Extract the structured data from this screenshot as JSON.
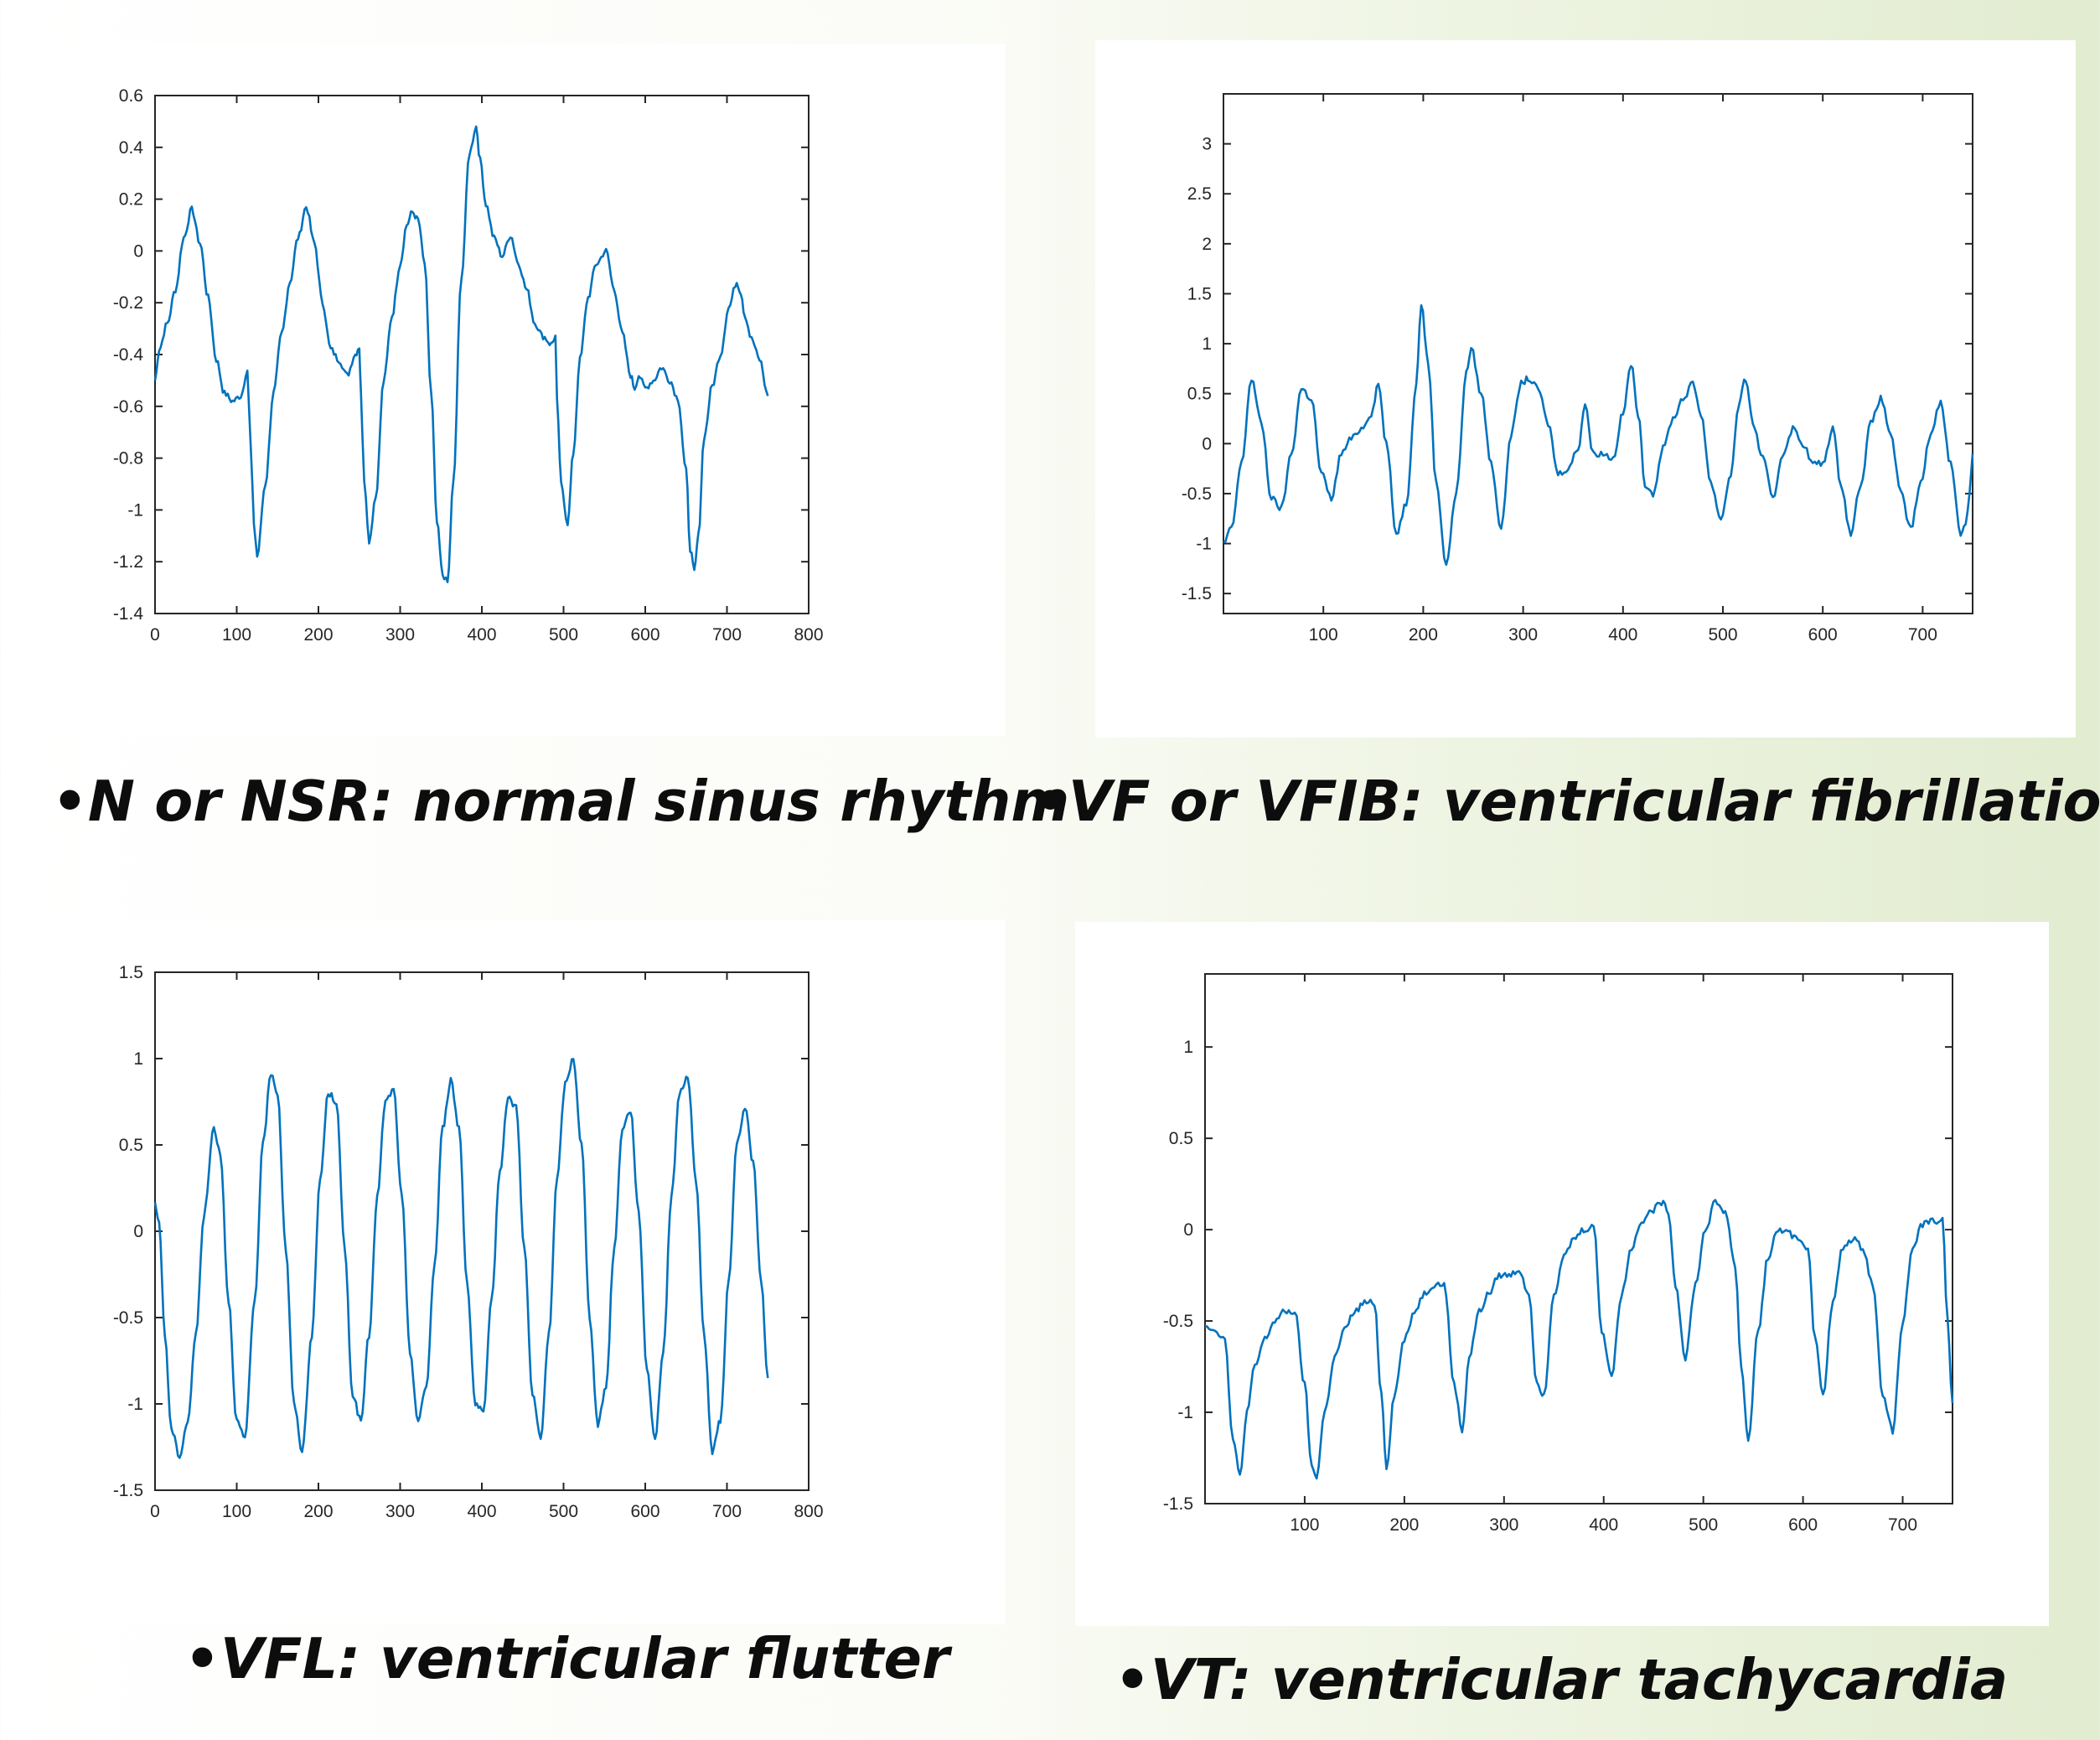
{
  "captions": {
    "nsr": "•N or NSR: normal sinus rhythm",
    "vf": "•VF or VFIB: ventricular fibrillation",
    "vfl": "•VFL: ventricular flutter",
    "vt": "•VT: ventricular tachycardia"
  },
  "colors": {
    "trace": "#0072bd",
    "axis": "#262626",
    "panel": "#ffffff"
  },
  "chart_data": [
    {
      "id": "nsr",
      "type": "line",
      "title": "",
      "xlabel": "",
      "ylabel": "",
      "xlim": [
        0,
        800
      ],
      "ylim": [
        -1.4,
        0.6
      ],
      "xticks": [
        0,
        100,
        200,
        300,
        400,
        500,
        600,
        700,
        800
      ],
      "yticks": [
        -1.4,
        -1.2,
        -1,
        -0.8,
        -0.6,
        -0.4,
        -0.2,
        0,
        0.2,
        0.4,
        0.6
      ],
      "xtick_labels": [
        "0",
        "100",
        "200",
        "300",
        "400",
        "500",
        "600",
        "700",
        "800"
      ],
      "ytick_labels": [
        "-1.4",
        "-1.2",
        "-1",
        "-0.8",
        "-0.6",
        "-0.4",
        "-0.2",
        "0",
        "0.2",
        "0.4",
        "0.6"
      ],
      "grid": false,
      "series": [
        {
          "x": [
            0,
            5,
            15,
            25,
            35,
            45,
            55,
            65,
            75,
            85,
            95,
            105,
            113,
            117,
            121,
            125,
            135,
            145,
            155,
            165,
            175,
            185,
            195,
            205,
            215,
            225,
            235,
            245,
            250,
            252,
            256,
            262,
            270,
            280,
            290,
            300,
            308,
            315,
            322,
            330,
            338,
            345,
            352,
            358,
            365,
            375,
            385,
            393,
            398,
            405,
            415,
            425,
            435,
            445,
            455,
            465,
            475,
            485,
            490,
            492,
            497,
            505,
            512,
            520,
            530,
            540,
            552,
            562,
            572,
            582,
            587,
            592,
            600,
            610,
            620,
            630,
            640,
            650,
            655,
            660,
            665,
            672,
            682,
            692,
            702,
            712,
            717,
            722,
            730,
            740,
            750
          ],
          "y": [
            -0.5,
            -0.38,
            -0.28,
            -0.15,
            0.05,
            0.16,
            0.03,
            -0.18,
            -0.42,
            -0.55,
            -0.58,
            -0.56,
            -0.46,
            -0.75,
            -1.05,
            -1.18,
            -0.9,
            -0.55,
            -0.32,
            -0.12,
            0.05,
            0.17,
            0.03,
            -0.2,
            -0.38,
            -0.42,
            -0.48,
            -0.4,
            -0.37,
            -0.55,
            -0.88,
            -1.12,
            -0.95,
            -0.5,
            -0.25,
            -0.05,
            0.1,
            0.15,
            0.12,
            -0.05,
            -0.55,
            -1.05,
            -1.25,
            -1.28,
            -0.9,
            -0.1,
            0.38,
            0.48,
            0.35,
            0.18,
            0.05,
            -0.02,
            0.06,
            -0.05,
            -0.15,
            -0.28,
            -0.33,
            -0.36,
            -0.33,
            -0.58,
            -0.9,
            -1.05,
            -0.78,
            -0.42,
            -0.18,
            -0.05,
            0.0,
            -0.15,
            -0.32,
            -0.48,
            -0.53,
            -0.48,
            -0.53,
            -0.5,
            -0.45,
            -0.5,
            -0.57,
            -0.85,
            -1.15,
            -1.24,
            -1.1,
            -0.72,
            -0.52,
            -0.4,
            -0.22,
            -0.12,
            -0.16,
            -0.25,
            -0.34,
            -0.42,
            -0.56
          ]
        }
      ]
    },
    {
      "id": "vf",
      "type": "line",
      "title": "",
      "xlabel": "",
      "ylabel": "",
      "xlim": [
        0,
        750
      ],
      "ylim": [
        -1.7,
        3.5
      ],
      "xticks": [
        100,
        200,
        300,
        400,
        500,
        600,
        700
      ],
      "yticks": [
        -1.5,
        -1,
        -0.5,
        0,
        0.5,
        1,
        1.5,
        2,
        2.5,
        3
      ],
      "xtick_labels": [
        "100",
        "200",
        "300",
        "400",
        "500",
        "600",
        "700"
      ],
      "ytick_labels": [
        "-1.5",
        "-1",
        "-0.5",
        "0",
        "0.5",
        "1",
        "1.5",
        "2",
        "2.5",
        "3"
      ],
      "grid": false,
      "series": [
        {
          "x": [
            0,
            8,
            18,
            28,
            38,
            48,
            58,
            68,
            78,
            88,
            98,
            108,
            118,
            128,
            138,
            148,
            155,
            163,
            173,
            183,
            193,
            198,
            205,
            213,
            223,
            233,
            243,
            248,
            258,
            268,
            278,
            288,
            298,
            305,
            315,
            325,
            335,
            345,
            355,
            362,
            370,
            380,
            390,
            400,
            408,
            415,
            422,
            430,
            440,
            450,
            460,
            470,
            478,
            488,
            498,
            508,
            516,
            523,
            530,
            540,
            550,
            560,
            570,
            580,
            590,
            600,
            610,
            618,
            628,
            638,
            648,
            658,
            668,
            678,
            688,
            698,
            708,
            718,
            728,
            738,
            743,
            747,
            750
          ],
          "y": [
            -1.0,
            -0.85,
            -0.2,
            0.65,
            0.2,
            -0.55,
            -0.65,
            -0.1,
            0.55,
            0.45,
            -0.3,
            -0.55,
            -0.1,
            0.05,
            0.15,
            0.3,
            0.6,
            0.0,
            -0.9,
            -0.6,
            0.6,
            1.4,
            0.8,
            -0.4,
            -1.2,
            -0.5,
            0.7,
            0.95,
            0.5,
            -0.2,
            -0.85,
            0.1,
            0.6,
            0.65,
            0.55,
            0.2,
            -0.3,
            -0.25,
            -0.05,
            0.4,
            -0.1,
            -0.1,
            -0.15,
            0.3,
            0.8,
            0.3,
            -0.4,
            -0.5,
            -0.05,
            0.25,
            0.45,
            0.6,
            0.3,
            -0.4,
            -0.75,
            -0.3,
            0.4,
            0.65,
            0.2,
            -0.15,
            -0.55,
            -0.1,
            0.15,
            0.0,
            -0.2,
            -0.2,
            0.15,
            -0.4,
            -0.9,
            -0.4,
            0.2,
            0.45,
            0.1,
            -0.5,
            -0.85,
            -0.4,
            0.1,
            0.42,
            -0.2,
            -0.9,
            -0.8,
            -0.5,
            -0.1
          ]
        }
      ]
    },
    {
      "id": "vfl",
      "type": "line",
      "title": "",
      "xlabel": "",
      "ylabel": "",
      "xlim": [
        0,
        800
      ],
      "ylim": [
        -1.5,
        1.5
      ],
      "xticks": [
        0,
        100,
        200,
        300,
        400,
        500,
        600,
        700,
        800
      ],
      "yticks": [
        -1.5,
        -1,
        -0.5,
        0,
        0.5,
        1,
        1.5
      ],
      "xtick_labels": [
        "0",
        "100",
        "200",
        "300",
        "400",
        "500",
        "600",
        "700",
        "800"
      ],
      "ytick_labels": [
        "-1.5",
        "-1",
        "-0.5",
        "0",
        "0.5",
        "1",
        "1.5"
      ],
      "grid": false,
      "series": [
        {
          "x": [
            0,
            5,
            12,
            20,
            30,
            40,
            50,
            60,
            72,
            80,
            90,
            100,
            110,
            122,
            132,
            142,
            150,
            160,
            170,
            180,
            192,
            202,
            212,
            222,
            232,
            242,
            252,
            262,
            272,
            282,
            292,
            302,
            312,
            322,
            332,
            342,
            352,
            362,
            372,
            382,
            392,
            402,
            412,
            422,
            432,
            442,
            452,
            462,
            472,
            482,
            492,
            502,
            512,
            522,
            532,
            542,
            552,
            562,
            572,
            582,
            592,
            602,
            612,
            622,
            632,
            642,
            652,
            662,
            672,
            682,
            692,
            702,
            712,
            722,
            732,
            742,
            750
          ],
          "y": [
            0.15,
            0.05,
            -0.6,
            -1.15,
            -1.3,
            -1.1,
            -0.6,
            0.1,
            0.6,
            0.45,
            -0.4,
            -1.1,
            -1.2,
            -0.4,
            0.5,
            0.92,
            0.8,
            -0.1,
            -1.0,
            -1.27,
            -0.6,
            0.3,
            0.8,
            0.75,
            -0.1,
            -0.95,
            -1.1,
            -0.6,
            0.2,
            0.75,
            0.82,
            0.2,
            -0.7,
            -1.1,
            -0.9,
            -0.2,
            0.6,
            0.87,
            0.6,
            -0.3,
            -1.0,
            -1.05,
            -0.4,
            0.35,
            0.77,
            0.72,
            -0.1,
            -0.95,
            -1.2,
            -0.6,
            0.3,
            0.85,
            1.0,
            0.5,
            -0.5,
            -1.12,
            -0.9,
            -0.1,
            0.6,
            0.7,
            0.1,
            -0.8,
            -1.2,
            -0.7,
            0.2,
            0.8,
            0.9,
            0.3,
            -0.6,
            -1.28,
            -1.1,
            -0.3,
            0.5,
            0.72,
            0.4,
            -0.3,
            -0.85
          ]
        }
      ]
    },
    {
      "id": "vt",
      "type": "line",
      "title": "",
      "xlabel": "",
      "ylabel": "",
      "xlim": [
        0,
        750
      ],
      "ylim": [
        -1.5,
        1.4
      ],
      "xticks": [
        100,
        200,
        300,
        400,
        500,
        600,
        700
      ],
      "yticks": [
        -1.5,
        -1,
        -0.5,
        0,
        0.5,
        1
      ],
      "xtick_labels": [
        "100",
        "200",
        "300",
        "400",
        "500",
        "600",
        "700"
      ],
      "ytick_labels": [
        "-1.5",
        "-1",
        "-0.5",
        "0",
        "0.5",
        "1"
      ],
      "grid": false,
      "series": [
        {
          "x": [
            0,
            10,
            20,
            28,
            35,
            42,
            50,
            60,
            70,
            80,
            90,
            100,
            107,
            112,
            120,
            130,
            140,
            150,
            160,
            170,
            177,
            182,
            190,
            200,
            210,
            220,
            230,
            240,
            250,
            258,
            265,
            275,
            285,
            295,
            305,
            315,
            325,
            333,
            340,
            350,
            360,
            370,
            380,
            390,
            398,
            408,
            418,
            428,
            438,
            448,
            458,
            465,
            472,
            482,
            492,
            502,
            512,
            522,
            532,
            538,
            545,
            555,
            565,
            575,
            585,
            595,
            605,
            612,
            620,
            630,
            640,
            650,
            660,
            670,
            680,
            690,
            700,
            710,
            720,
            730,
            740,
            745,
            750
          ],
          "y": [
            -0.52,
            -0.55,
            -0.6,
            -1.15,
            -1.35,
            -1.0,
            -0.75,
            -0.6,
            -0.5,
            -0.45,
            -0.45,
            -0.85,
            -1.3,
            -1.35,
            -1.0,
            -0.7,
            -0.55,
            -0.45,
            -0.4,
            -0.4,
            -0.9,
            -1.3,
            -0.9,
            -0.6,
            -0.45,
            -0.35,
            -0.3,
            -0.3,
            -0.85,
            -1.1,
            -0.7,
            -0.45,
            -0.35,
            -0.25,
            -0.25,
            -0.22,
            -0.35,
            -0.85,
            -0.9,
            -0.35,
            -0.15,
            -0.05,
            0.0,
            0.02,
            -0.55,
            -0.8,
            -0.35,
            -0.1,
            0.05,
            0.1,
            0.15,
            0.1,
            -0.3,
            -0.7,
            -0.3,
            0.0,
            0.15,
            0.1,
            -0.2,
            -0.75,
            -1.15,
            -0.55,
            -0.15,
            0.0,
            -0.02,
            -0.05,
            -0.1,
            -0.6,
            -0.9,
            -0.4,
            -0.1,
            -0.05,
            -0.1,
            -0.3,
            -0.9,
            -1.1,
            -0.5,
            -0.1,
            0.03,
            0.05,
            0.05,
            -0.5,
            -0.95
          ]
        }
      ]
    }
  ]
}
